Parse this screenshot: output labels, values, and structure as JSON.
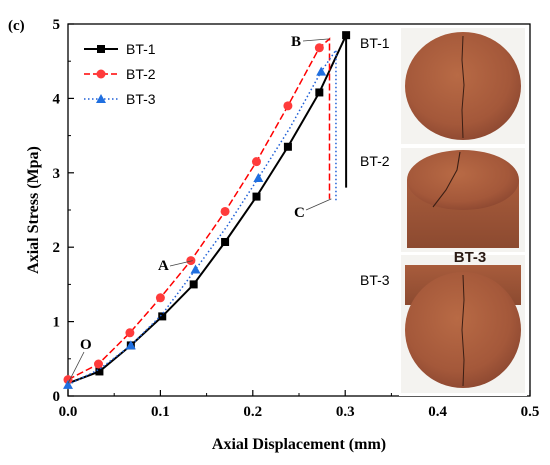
{
  "chart_data": {
    "type": "line",
    "panel_label": "(c)",
    "xlabel": "Axial Displacement (mm)",
    "ylabel": "Axial Stress (Mpa)",
    "xlim": [
      0,
      0.5
    ],
    "ylim": [
      0,
      5
    ],
    "xticks": [
      "0.0",
      "0.1",
      "0.2",
      "0.3",
      "0.4",
      "0.5"
    ],
    "yticks": [
      "0",
      "1",
      "2",
      "3",
      "4",
      "5"
    ],
    "legend_position": "top-left",
    "series": [
      {
        "name": "BT-1",
        "color": "#000000",
        "marker": "square",
        "dash": "solid",
        "x": [
          0.0,
          0.034,
          0.068,
          0.102,
          0.136,
          0.17,
          0.204,
          0.238,
          0.272,
          0.301,
          0.301
        ],
        "y": [
          0.17,
          0.33,
          0.68,
          1.07,
          1.5,
          2.07,
          2.68,
          3.35,
          4.08,
          4.85,
          2.8
        ],
        "markers_x": [
          0.034,
          0.068,
          0.102,
          0.136,
          0.17,
          0.204,
          0.238,
          0.272,
          0.301
        ],
        "markers_y": [
          0.33,
          0.68,
          1.07,
          1.5,
          2.07,
          2.68,
          3.35,
          4.08,
          4.85
        ]
      },
      {
        "name": "BT-2",
        "color": "#ff0000",
        "marker": "circle",
        "dash": "dash",
        "x": [
          0.0,
          0.033,
          0.067,
          0.1,
          0.133,
          0.17,
          0.204,
          0.238,
          0.272,
          0.283,
          0.283
        ],
        "y": [
          0.22,
          0.43,
          0.85,
          1.32,
          1.82,
          2.48,
          3.15,
          3.9,
          4.68,
          4.8,
          2.65
        ],
        "markers_x": [
          0.0,
          0.033,
          0.067,
          0.1,
          0.133,
          0.17,
          0.204,
          0.238,
          0.272
        ],
        "markers_y": [
          0.22,
          0.43,
          0.85,
          1.32,
          1.82,
          2.48,
          3.15,
          3.9,
          4.68
        ]
      },
      {
        "name": "BT-3",
        "color": "#1f5fd6",
        "marker": "triangle",
        "dash": "dot",
        "x": [
          0.0,
          0.034,
          0.068,
          0.102,
          0.138,
          0.172,
          0.206,
          0.24,
          0.274,
          0.29,
          0.29
        ],
        "y": [
          0.15,
          0.36,
          0.68,
          1.1,
          1.7,
          2.28,
          2.93,
          3.6,
          4.36,
          4.65,
          2.6
        ],
        "markers_x": [
          0.0,
          0.068,
          0.138,
          0.206,
          0.274
        ],
        "markers_y": [
          0.15,
          0.68,
          1.7,
          2.93,
          4.36
        ]
      }
    ],
    "annotations": [
      {
        "text": "O",
        "x": 0.0,
        "y": 0.17
      },
      {
        "text": "A",
        "x": 0.135,
        "y": 1.82
      },
      {
        "text": "B",
        "x": 0.283,
        "y": 4.8
      },
      {
        "text": "C",
        "x": 0.285,
        "y": 2.65
      }
    ]
  },
  "photos": [
    {
      "label": "BT-1",
      "marking": ""
    },
    {
      "label": "BT-2",
      "marking": ""
    },
    {
      "label": "BT-3",
      "marking": "BT-3"
    }
  ]
}
